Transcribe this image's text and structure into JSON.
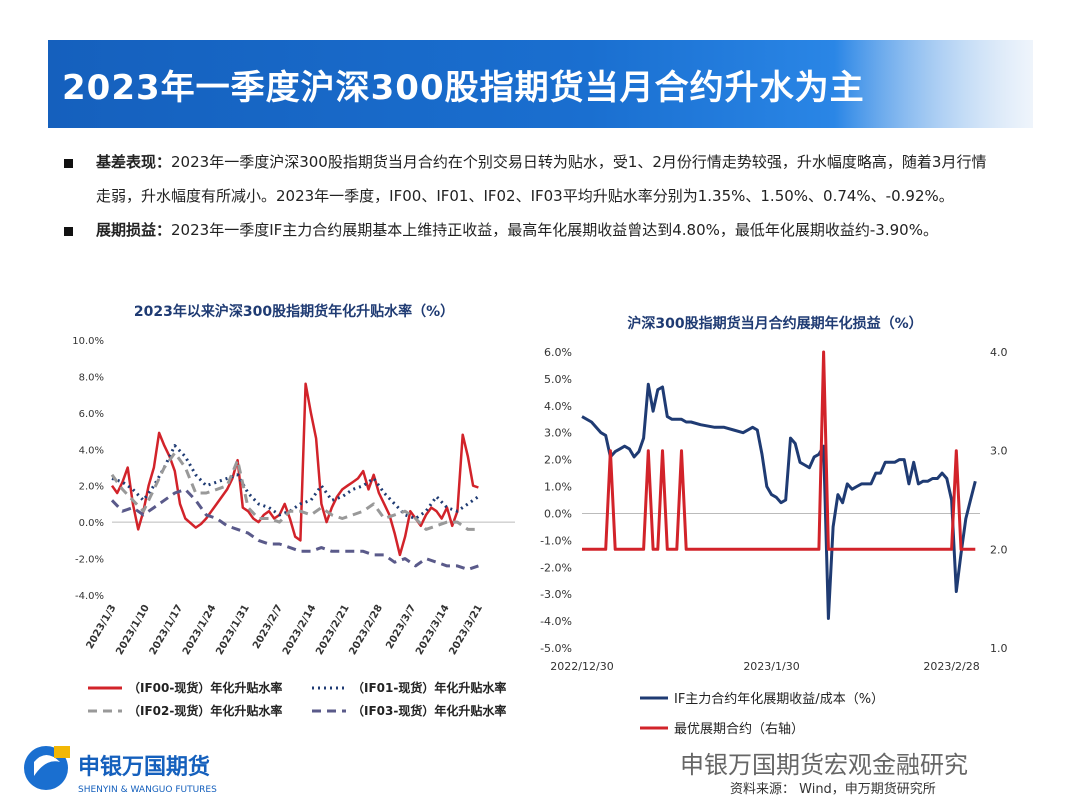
{
  "header": {
    "title": "2023年一季度沪深300股指期货当月合约升水为主"
  },
  "bullets": [
    {
      "label": "基差表现：",
      "text": "2023年一季度沪深300股指期货当月合约在个别交易日转为贴水，受1、2月份行情走势较强，升水幅度略高，随着3月行情",
      "text2": "走弱，升水幅度有所减小。2023年一季度，IF00、IF01、IF02、IF03平均升贴水率分别为1.35%、1.50%、0.74%、-0.92%。"
    },
    {
      "label": "展期损益：",
      "text": "2023年一季度IF主力合约展期基本上维持正收益，最高年化展期收益曾达到4.80%，最低年化展期收益约-3.90%。"
    }
  ],
  "footer": {
    "logo_cn": "申银万国期货",
    "logo_en": "SHENYIN & WANGUO FUTURES",
    "watermark": "申银万国期货宏观金融研究",
    "source": "资料来源： Wind，申万期货研究所"
  },
  "colors": {
    "red": "#d2232a",
    "navy": "#1f3b73",
    "gray": "#999999",
    "purple": "#5a5a8a",
    "banner": "#1560bd"
  },
  "chart_data": [
    {
      "type": "line",
      "title": "2023年以来沪深300股指期货年化升贴水率（%）",
      "yticks": [
        "10.0%",
        "8.0%",
        "6.0%",
        "4.0%",
        "2.0%",
        "0.0%",
        "-2.0%",
        "-4.0%"
      ],
      "ylim": [
        -4,
        10
      ],
      "xticks": [
        "2023/1/3",
        "2023/1/10",
        "2023/1/17",
        "2023/1/24",
        "2023/1/31",
        "2023/2/7",
        "2023/2/14",
        "2023/2/21",
        "2023/2/28",
        "2023/3/7",
        "2023/3/14",
        "2023/3/21"
      ],
      "xlim": [
        0,
        77
      ],
      "series": [
        {
          "name": "（IF00-现货）年化升贴水率",
          "color": "#d2232a",
          "dash": "solid",
          "x": [
            0,
            1,
            2,
            3,
            4,
            5,
            6,
            7,
            8,
            9,
            10,
            11,
            12,
            13,
            14,
            16,
            17,
            18,
            19,
            20,
            21,
            22,
            23,
            24,
            25,
            26,
            27,
            28,
            29,
            30,
            31,
            32,
            33,
            34,
            35,
            36,
            37,
            38,
            39,
            40,
            41,
            42,
            43,
            44,
            45,
            46,
            47,
            48,
            49,
            50,
            51,
            52,
            53,
            54,
            55,
            56,
            57,
            58,
            59,
            60,
            61,
            62,
            63,
            64,
            65,
            66,
            67,
            68,
            69,
            70
          ],
          "y": [
            2.0,
            1.6,
            2.2,
            3.0,
            1.0,
            -0.4,
            0.6,
            2.0,
            3.0,
            4.9,
            4.2,
            3.6,
            2.8,
            1.0,
            0.2,
            -0.3,
            -0.1,
            0.2,
            0.6,
            1.0,
            1.4,
            1.8,
            2.4,
            3.4,
            0.8,
            0.6,
            0.2,
            0.0,
            0.4,
            0.6,
            0.2,
            0.4,
            1.0,
            0.2,
            -0.8,
            -1.0,
            7.6,
            6.0,
            4.6,
            1.0,
            0.0,
            0.8,
            1.4,
            1.8,
            2.0,
            2.2,
            2.4,
            2.8,
            1.8,
            2.6,
            1.6,
            1.0,
            0.4,
            -0.6,
            -1.8,
            -0.8,
            0.6,
            0.2,
            -0.2,
            0.4,
            0.8,
            0.6,
            0.2,
            0.8,
            -0.2,
            0.6,
            4.8,
            3.6,
            2.0,
            1.9
          ]
        },
        {
          "name": "（IF01-现货）年化升贴水率",
          "color": "#1f3b73",
          "dash": "dot",
          "x": [
            0,
            2,
            4,
            6,
            8,
            10,
            12,
            14,
            16,
            18,
            20,
            22,
            24,
            26,
            28,
            30,
            32,
            34,
            36,
            38,
            40,
            42,
            44,
            46,
            48,
            50,
            52,
            54,
            56,
            58,
            60,
            62,
            64,
            66,
            68,
            70
          ],
          "y": [
            2.4,
            2.2,
            1.8,
            1.2,
            2.0,
            3.0,
            4.2,
            3.6,
            2.6,
            2.0,
            2.2,
            2.4,
            2.6,
            1.6,
            1.0,
            0.8,
            0.4,
            0.6,
            1.0,
            1.2,
            2.0,
            1.2,
            1.4,
            1.8,
            2.0,
            2.4,
            1.6,
            1.0,
            0.4,
            0.2,
            0.6,
            1.4,
            0.8,
            0.6,
            1.0,
            1.4
          ]
        },
        {
          "name": "（IF02-现货）年化升贴水率",
          "color": "#999999",
          "dash": "dash",
          "x": [
            0,
            2,
            4,
            6,
            8,
            10,
            12,
            14,
            16,
            18,
            20,
            22,
            24,
            26,
            28,
            30,
            32,
            34,
            36,
            38,
            40,
            42,
            44,
            46,
            48,
            50,
            52,
            54,
            56,
            58,
            60,
            62,
            64,
            66,
            68,
            70
          ],
          "y": [
            2.6,
            1.8,
            1.2,
            0.6,
            1.8,
            3.0,
            3.8,
            3.0,
            1.6,
            1.6,
            1.8,
            2.0,
            3.4,
            0.8,
            0.2,
            0.2,
            0.0,
            0.6,
            0.6,
            0.4,
            0.8,
            0.4,
            0.2,
            0.4,
            0.6,
            1.0,
            0.2,
            0.4,
            0.6,
            0.2,
            -0.4,
            -0.2,
            0.0,
            0.0,
            -0.4,
            -0.4
          ]
        },
        {
          "name": "（IF03-现货）年化升贴水率",
          "color": "#5a5a8a",
          "dash": "dash",
          "x": [
            0,
            2,
            4,
            6,
            8,
            10,
            12,
            14,
            16,
            18,
            20,
            22,
            24,
            26,
            28,
            30,
            32,
            34,
            36,
            38,
            40,
            42,
            44,
            46,
            48,
            50,
            52,
            54,
            56,
            58,
            60,
            62,
            64,
            66,
            68,
            70
          ],
          "y": [
            1.2,
            0.6,
            0.8,
            0.4,
            0.8,
            1.2,
            1.6,
            1.8,
            1.2,
            0.4,
            0.2,
            -0.2,
            -0.4,
            -0.6,
            -1.0,
            -1.2,
            -1.2,
            -1.4,
            -1.6,
            -1.6,
            -1.4,
            -1.6,
            -1.6,
            -1.6,
            -1.6,
            -1.8,
            -1.8,
            -2.2,
            -2.0,
            -2.4,
            -2.0,
            -2.2,
            -2.4,
            -2.4,
            -2.6,
            -2.4
          ]
        }
      ]
    },
    {
      "type": "line",
      "title": "沪深300股指期货当月合约展期年化损益（%）",
      "yticks_left": [
        "6.0%",
        "5.0%",
        "4.0%",
        "3.0%",
        "2.0%",
        "1.0%",
        "0.0%",
        "-1.0%",
        "-2.0%",
        "-3.0%",
        "-4.0%",
        "-5.0%"
      ],
      "ylim_left": [
        -5,
        6
      ],
      "yticks_right": [
        "4.0",
        "3.0",
        "2.0",
        "1.0"
      ],
      "ylim_right": [
        1,
        4
      ],
      "xticks": [
        "2022/12/30",
        "2023/1/30",
        "2023/2/28"
      ],
      "xlim": [
        0,
        84
      ],
      "series": [
        {
          "name": "IF主力合约年化展期收益/成本（%）",
          "color": "#1f3b73",
          "axis": "left",
          "x": [
            0,
            2,
            4,
            5,
            6,
            7,
            8,
            9,
            10,
            11,
            12,
            13,
            14,
            15,
            16,
            17,
            18,
            19,
            20,
            21,
            22,
            23,
            25,
            28,
            30,
            32,
            34,
            36,
            37,
            38,
            39,
            40,
            41,
            42,
            43,
            44,
            45,
            46,
            47,
            48,
            49,
            50,
            51,
            52,
            53,
            54,
            55,
            56,
            57,
            58,
            59,
            60,
            61,
            62,
            63,
            64,
            65,
            66,
            67,
            68,
            69,
            70,
            71,
            72,
            73,
            74,
            75,
            76,
            77,
            78,
            79,
            80,
            81,
            82,
            83
          ],
          "y": [
            3.6,
            3.4,
            3.0,
            2.9,
            2.1,
            2.3,
            2.4,
            2.5,
            2.4,
            2.1,
            2.3,
            2.8,
            4.8,
            3.8,
            4.6,
            4.7,
            3.6,
            3.5,
            3.5,
            3.5,
            3.4,
            3.4,
            3.3,
            3.2,
            3.2,
            3.1,
            3.0,
            3.2,
            3.1,
            2.2,
            1.0,
            0.7,
            0.6,
            0.4,
            0.5,
            2.8,
            2.6,
            1.9,
            1.8,
            1.7,
            2.1,
            2.2,
            2.5,
            -3.9,
            -0.5,
            0.7,
            0.4,
            1.1,
            0.9,
            1.0,
            1.1,
            1.1,
            1.1,
            1.5,
            1.5,
            1.9,
            1.9,
            1.9,
            2.0,
            2.0,
            1.1,
            1.9,
            1.1,
            1.2,
            1.2,
            1.3,
            1.3,
            1.5,
            1.3,
            0.5,
            -2.9,
            -1.5,
            -0.2,
            0.5,
            1.2
          ]
        },
        {
          "name": "最优展期合约（右轴）",
          "color": "#d2232a",
          "axis": "right",
          "x": [
            0,
            5,
            6,
            7,
            13,
            14,
            15,
            16,
            17,
            18,
            20,
            21,
            22,
            23,
            24,
            25,
            40,
            50,
            51,
            52,
            53,
            54,
            55,
            56,
            78,
            79,
            80,
            81,
            83
          ],
          "y": [
            2.0,
            2.0,
            3.0,
            2.0,
            2.0,
            3.0,
            2.0,
            2.0,
            3.0,
            2.0,
            2.0,
            3.0,
            2.0,
            2.0,
            2.0,
            2.0,
            2.0,
            2.0,
            4.0,
            2.0,
            2.0,
            2.0,
            2.0,
            2.0,
            2.0,
            3.0,
            2.0,
            2.0,
            2.0
          ]
        }
      ]
    }
  ]
}
